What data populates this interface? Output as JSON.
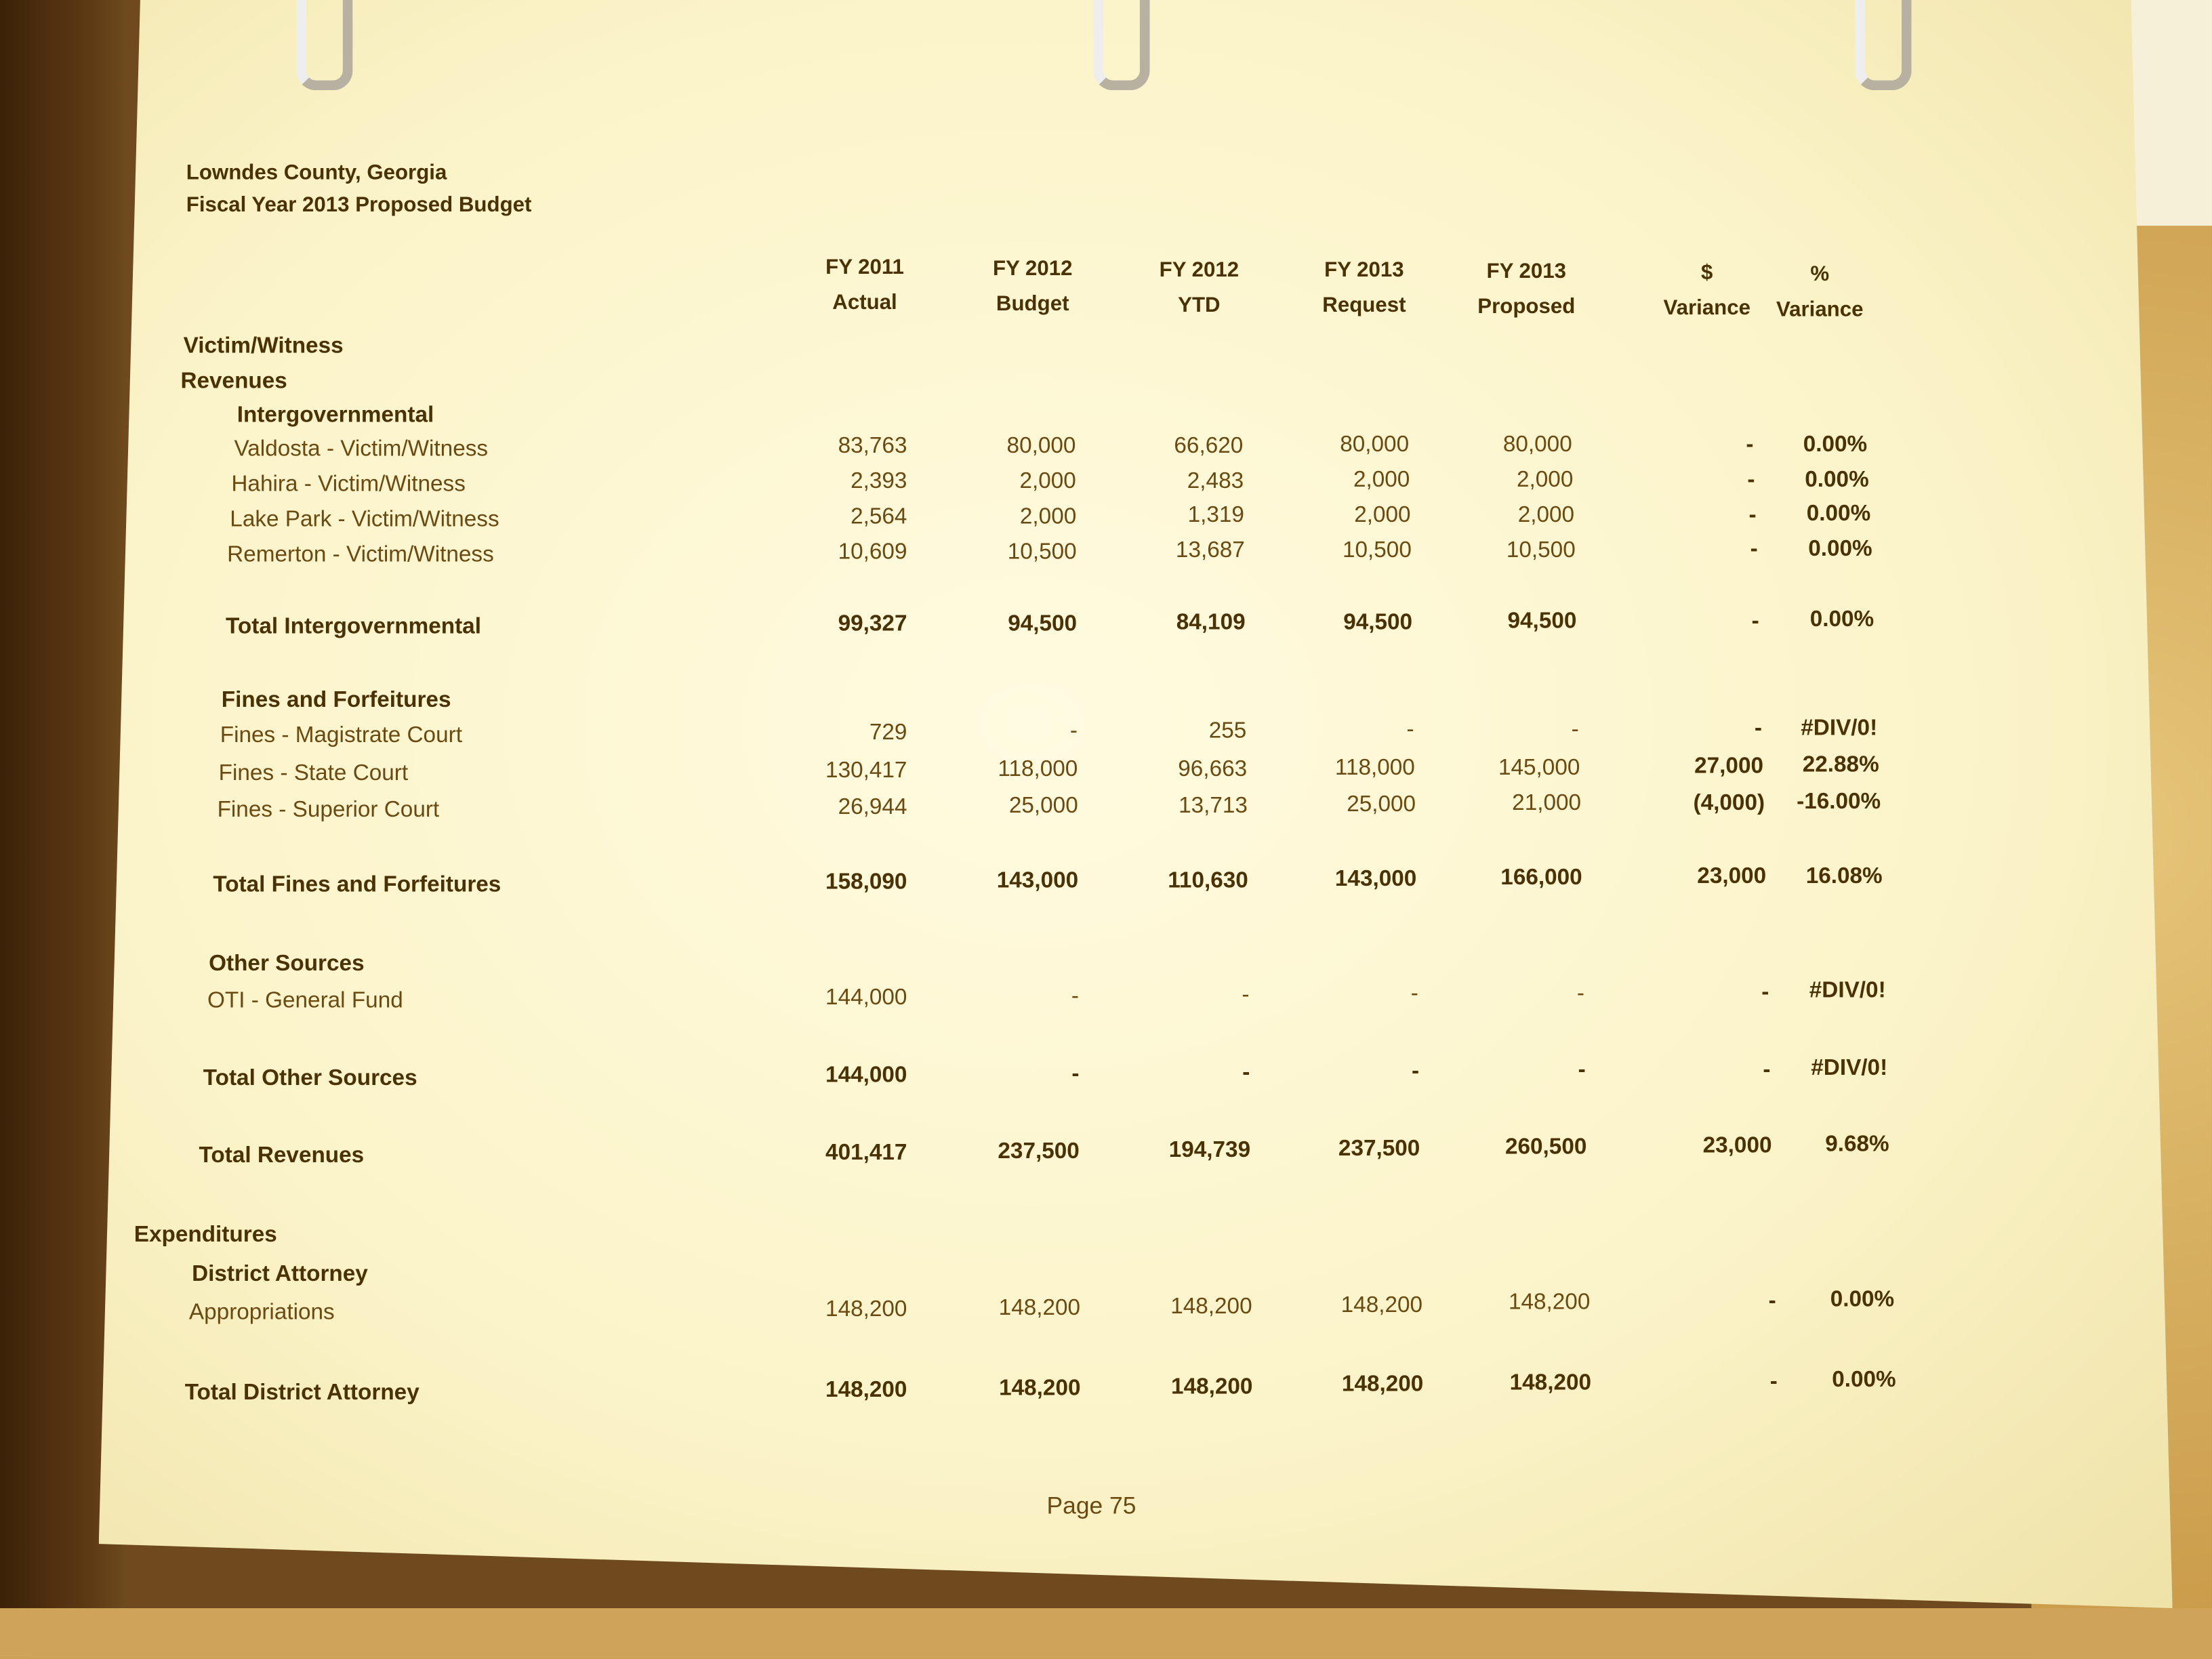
{
  "doc": {
    "org": "Lowndes County, Georgia",
    "title": "Fiscal Year 2013 Proposed Budget",
    "page": "Page 75"
  },
  "columns": [
    {
      "top": "FY 2011",
      "bottom": "Actual"
    },
    {
      "top": "FY 2012",
      "bottom": "Budget"
    },
    {
      "top": "FY 2012",
      "bottom": "YTD"
    },
    {
      "top": "FY 2013",
      "bottom": "Request"
    },
    {
      "top": "FY 2013",
      "bottom": "Proposed"
    },
    {
      "top": "$",
      "bottom": "Variance"
    },
    {
      "top": "%",
      "bottom": "Variance"
    }
  ],
  "rows": [
    {
      "label": "Victim/Witness",
      "bold": true,
      "values": []
    },
    {
      "label": "Revenues",
      "bold": true,
      "values": []
    },
    {
      "label": "Intergovernmental",
      "bold": true,
      "values": []
    },
    {
      "label": "Valdosta - Victim/Witness",
      "bold": false,
      "values": [
        "83,763",
        "80,000",
        "66,620",
        "80,000",
        "80,000",
        "-",
        "0.00%"
      ]
    },
    {
      "label": "Hahira - Victim/Witness",
      "bold": false,
      "values": [
        "2,393",
        "2,000",
        "2,483",
        "2,000",
        "2,000",
        "-",
        "0.00%"
      ]
    },
    {
      "label": "Lake Park - Victim/Witness",
      "bold": false,
      "values": [
        "2,564",
        "2,000",
        "1,319",
        "2,000",
        "2,000",
        "-",
        "0.00%"
      ]
    },
    {
      "label": "Remerton - Victim/Witness",
      "bold": false,
      "values": [
        "10,609",
        "10,500",
        "13,687",
        "10,500",
        "10,500",
        "-",
        "0.00%"
      ]
    },
    {
      "label": "Total Intergovernmental",
      "bold": true,
      "values": [
        "99,327",
        "94,500",
        "84,109",
        "94,500",
        "94,500",
        "-",
        "0.00%"
      ]
    },
    {
      "label": "Fines and Forfeitures",
      "bold": true,
      "values": []
    },
    {
      "label": "Fines - Magistrate Court",
      "bold": false,
      "values": [
        "729",
        "-",
        "255",
        "-",
        "-",
        "-",
        "#DIV/0!"
      ]
    },
    {
      "label": "Fines - State Court",
      "bold": false,
      "values": [
        "130,417",
        "118,000",
        "96,663",
        "118,000",
        "145,000",
        "27,000",
        "22.88%"
      ]
    },
    {
      "label": "Fines - Superior Court",
      "bold": false,
      "values": [
        "26,944",
        "25,000",
        "13,713",
        "25,000",
        "21,000",
        "(4,000)",
        "-16.00%"
      ]
    },
    {
      "label": "Total Fines and Forfeitures",
      "bold": true,
      "values": [
        "158,090",
        "143,000",
        "110,630",
        "143,000",
        "166,000",
        "23,000",
        "16.08%"
      ]
    },
    {
      "label": "Other Sources",
      "bold": true,
      "values": []
    },
    {
      "label": "OTI - General Fund",
      "bold": false,
      "values": [
        "144,000",
        "-",
        "-",
        "-",
        "-",
        "-",
        "#DIV/0!"
      ]
    },
    {
      "label": "Total Other Sources",
      "bold": true,
      "values": [
        "144,000",
        "-",
        "-",
        "-",
        "-",
        "-",
        "#DIV/0!"
      ]
    },
    {
      "label": "Total Revenues",
      "bold": true,
      "values": [
        "401,417",
        "237,500",
        "194,739",
        "237,500",
        "260,500",
        "23,000",
        "9.68%"
      ]
    },
    {
      "label": "Expenditures",
      "bold": true,
      "values": []
    },
    {
      "label": "District Attorney",
      "bold": true,
      "values": []
    },
    {
      "label": "Appropriations",
      "bold": false,
      "values": [
        "148,200",
        "148,200",
        "148,200",
        "148,200",
        "148,200",
        "-",
        "0.00%"
      ]
    },
    {
      "label": "Total District Attorney",
      "bold": true,
      "values": [
        "148,200",
        "148,200",
        "148,200",
        "148,200",
        "148,200",
        "-",
        "0.00%"
      ]
    }
  ]
}
